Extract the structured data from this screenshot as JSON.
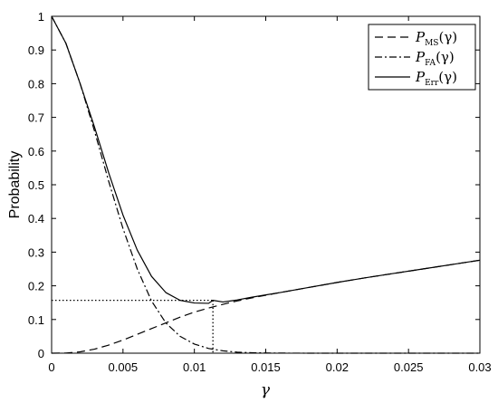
{
  "chart_data": {
    "type": "line",
    "xlabel": "γ",
    "ylabel": "Probability",
    "xlim": [
      0,
      0.03
    ],
    "ylim": [
      0,
      1
    ],
    "xticks": [
      0,
      0.005,
      0.01,
      0.015,
      0.02,
      0.025,
      0.03
    ],
    "xtick_labels": [
      "0",
      "0.005",
      "0.01",
      "0.015",
      "0.02",
      "0.025",
      "0.03"
    ],
    "yticks": [
      0,
      0.1,
      0.2,
      0.3,
      0.4,
      0.5,
      0.6,
      0.7,
      0.8,
      0.9,
      1
    ],
    "ytick_labels": [
      "0",
      "0.1",
      "0.2",
      "0.3",
      "0.4",
      "0.5",
      "0.6",
      "0.7",
      "0.8",
      "0.9",
      "1"
    ],
    "grid": false,
    "legend_position": "top-right",
    "series": [
      {
        "name": "P_MS(γ)",
        "legend_main": "P",
        "legend_sub": "MS",
        "legend_arg": "(γ)",
        "style": "dashed",
        "x": [
          0,
          0.001,
          0.002,
          0.003,
          0.004,
          0.005,
          0.006,
          0.007,
          0.008,
          0.009,
          0.01,
          0.011,
          0.012,
          0.013,
          0.014,
          0.015,
          0.016,
          0.018,
          0.02,
          0.022,
          0.024,
          0.026,
          0.028,
          0.03
        ],
        "y": [
          0,
          0.0005,
          0.004,
          0.012,
          0.024,
          0.039,
          0.056,
          0.073,
          0.09,
          0.107,
          0.122,
          0.134,
          0.145,
          0.155,
          0.164,
          0.172,
          0.18,
          0.195,
          0.21,
          0.224,
          0.237,
          0.25,
          0.263,
          0.276
        ]
      },
      {
        "name": "P_FA(γ)",
        "legend_main": "P",
        "legend_sub": "FA",
        "legend_arg": "(γ)",
        "style": "dashdot",
        "x": [
          0,
          0.001,
          0.002,
          0.003,
          0.004,
          0.005,
          0.006,
          0.007,
          0.008,
          0.009,
          0.01,
          0.011,
          0.012,
          0.013,
          0.014,
          0.015,
          0.016,
          0.018,
          0.02,
          0.022,
          0.024,
          0.026,
          0.028,
          0.03
        ],
        "y": [
          1.0,
          0.92,
          0.8,
          0.66,
          0.51,
          0.37,
          0.25,
          0.155,
          0.09,
          0.05,
          0.027,
          0.014,
          0.007,
          0.003,
          0.0015,
          0.0007,
          0.0003,
          5e-05,
          0,
          0,
          0,
          0,
          0,
          0
        ]
      },
      {
        "name": "P_Err(γ)",
        "legend_main": "P",
        "legend_sub": "Err",
        "legend_arg": "(γ)",
        "style": "solid",
        "x": [
          0,
          0.001,
          0.002,
          0.003,
          0.004,
          0.005,
          0.006,
          0.007,
          0.008,
          0.009,
          0.01,
          0.011,
          0.0113,
          0.012,
          0.013,
          0.014,
          0.015,
          0.016,
          0.018,
          0.02,
          0.022,
          0.024,
          0.026,
          0.028,
          0.03
        ],
        "y": [
          1.0,
          0.92,
          0.8,
          0.672,
          0.535,
          0.41,
          0.306,
          0.228,
          0.18,
          0.157,
          0.149,
          0.148,
          0.157,
          0.152,
          0.158,
          0.166,
          0.173,
          0.18,
          0.195,
          0.21,
          0.224,
          0.237,
          0.25,
          0.263,
          0.276
        ]
      }
    ],
    "annotations": [
      {
        "type": "dotted-marker",
        "x": 0.0113,
        "y": 0.157
      }
    ]
  }
}
